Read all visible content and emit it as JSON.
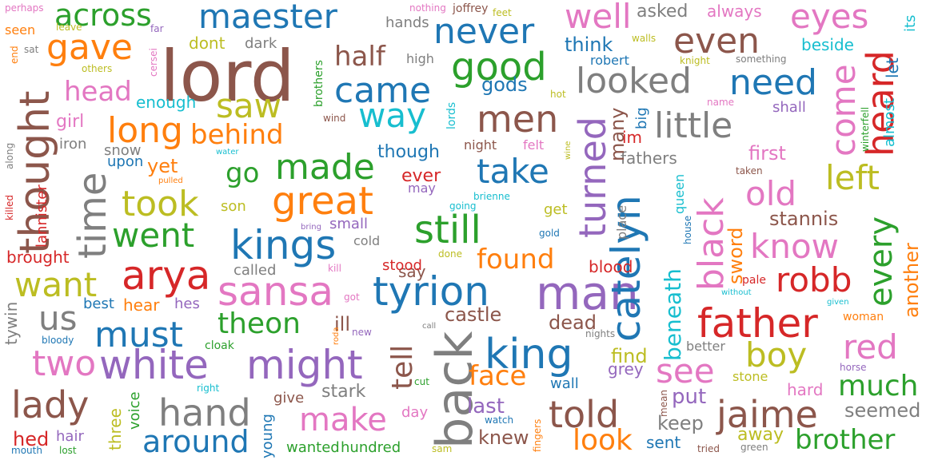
{
  "colors": {
    "background": "#ffffff",
    "palette": [
      "#1f77b4",
      "#ff7f0e",
      "#2ca02c",
      "#d62728",
      "#9467bd",
      "#8c564b",
      "#e377c2",
      "#7f7f7f",
      "#bcbd22",
      "#17becf"
    ]
  },
  "words": [
    {
      "text": "lord",
      "color": "#8c564b",
      "rotated": false
    },
    {
      "text": "thought",
      "color": "#8c564b",
      "rotated": true
    },
    {
      "text": "back",
      "color": "#7f7f7f",
      "rotated": true
    },
    {
      "text": "man",
      "color": "#9467bd",
      "rotated": false
    },
    {
      "text": "king",
      "color": "#1f77b4",
      "rotated": false
    },
    {
      "text": "father",
      "color": "#d62728",
      "rotated": false
    },
    {
      "text": "tyrion",
      "color": "#1f77b4",
      "rotated": false
    },
    {
      "text": "kings",
      "color": "#1f77b4",
      "rotated": false
    },
    {
      "text": "sansa",
      "color": "#e377c2",
      "rotated": false
    },
    {
      "text": "arya",
      "color": "#d62728",
      "rotated": false
    },
    {
      "text": "might",
      "color": "#9467bd",
      "rotated": false
    },
    {
      "text": "white",
      "color": "#9467bd",
      "rotated": false
    },
    {
      "text": "great",
      "color": "#ff7f0e",
      "rotated": false
    },
    {
      "text": "still",
      "color": "#2ca02c",
      "rotated": false
    },
    {
      "text": "men",
      "color": "#8c564b",
      "rotated": false
    },
    {
      "text": "catelyn",
      "color": "#1f77b4",
      "rotated": true
    },
    {
      "text": "turned",
      "color": "#9467bd",
      "rotated": true
    },
    {
      "text": "black",
      "color": "#e377c2",
      "rotated": true
    },
    {
      "text": "jaime",
      "color": "#8c564b",
      "rotated": false
    },
    {
      "text": "told",
      "color": "#8c564b",
      "rotated": false
    },
    {
      "text": "hand",
      "color": "#7f7f7f",
      "rotated": false
    },
    {
      "text": "lady",
      "color": "#8c564b",
      "rotated": false
    },
    {
      "text": "two",
      "color": "#e377c2",
      "rotated": false
    },
    {
      "text": "must",
      "color": "#1f77b4",
      "rotated": false
    },
    {
      "text": "us",
      "color": "#7f7f7f",
      "rotated": false
    },
    {
      "text": "around",
      "color": "#1f77b4",
      "rotated": false
    },
    {
      "text": "make",
      "color": "#e377c2",
      "rotated": false
    },
    {
      "text": "maester",
      "color": "#1f77b4",
      "rotated": false
    },
    {
      "text": "never",
      "color": "#1f77b4",
      "rotated": false
    },
    {
      "text": "good",
      "color": "#2ca02c",
      "rotated": false
    },
    {
      "text": "even",
      "color": "#8c564b",
      "rotated": false
    },
    {
      "text": "eyes",
      "color": "#e377c2",
      "rotated": false
    },
    {
      "text": "well",
      "color": "#e377c2",
      "rotated": false
    },
    {
      "text": "came",
      "color": "#1f77b4",
      "rotated": false
    },
    {
      "text": "looked",
      "color": "#7f7f7f",
      "rotated": false
    },
    {
      "text": "need",
      "color": "#1f77b4",
      "rotated": false
    },
    {
      "text": "little",
      "color": "#7f7f7f",
      "rotated": false
    },
    {
      "text": "heard",
      "color": "#d62728",
      "rotated": true
    },
    {
      "text": "come",
      "color": "#e377c2",
      "rotated": true
    },
    {
      "text": "left",
      "color": "#bcbd22",
      "rotated": false
    },
    {
      "text": "old",
      "color": "#e377c2",
      "rotated": false
    },
    {
      "text": "know",
      "color": "#e377c2",
      "rotated": false
    },
    {
      "text": "robb",
      "color": "#d62728",
      "rotated": false
    },
    {
      "text": "every",
      "color": "#2ca02c",
      "rotated": true
    },
    {
      "text": "red",
      "color": "#e377c2",
      "rotated": false
    },
    {
      "text": "boy",
      "color": "#bcbd22",
      "rotated": false
    },
    {
      "text": "see",
      "color": "#e377c2",
      "rotated": false
    },
    {
      "text": "much",
      "color": "#2ca02c",
      "rotated": false
    },
    {
      "text": "brother",
      "color": "#2ca02c",
      "rotated": false
    },
    {
      "text": "seemed",
      "color": "#7f7f7f",
      "rotated": false
    },
    {
      "text": "time",
      "color": "#7f7f7f",
      "rotated": true
    },
    {
      "text": "took",
      "color": "#bcbd22",
      "rotated": false
    },
    {
      "text": "went",
      "color": "#2ca02c",
      "rotated": false
    },
    {
      "text": "want",
      "color": "#bcbd22",
      "rotated": false
    },
    {
      "text": "long",
      "color": "#ff7f0e",
      "rotated": false
    },
    {
      "text": "saw",
      "color": "#bcbd22",
      "rotated": false
    },
    {
      "text": "way",
      "color": "#17becf",
      "rotated": false
    },
    {
      "text": "made",
      "color": "#2ca02c",
      "rotated": false
    },
    {
      "text": "take",
      "color": "#1f77b4",
      "rotated": false
    },
    {
      "text": "gave",
      "color": "#ff7f0e",
      "rotated": false
    },
    {
      "text": "across",
      "color": "#2ca02c",
      "rotated": false
    },
    {
      "text": "head",
      "color": "#e377c2",
      "rotated": false
    },
    {
      "text": "behind",
      "color": "#ff7f0e",
      "rotated": false
    },
    {
      "text": "go",
      "color": "#2ca02c",
      "rotated": false
    },
    {
      "text": "half",
      "color": "#8c564b",
      "rotated": false
    },
    {
      "text": "theon",
      "color": "#2ca02c",
      "rotated": false
    },
    {
      "text": "found",
      "color": "#ff7f0e",
      "rotated": false
    },
    {
      "text": "face",
      "color": "#ff7f0e",
      "rotated": false
    },
    {
      "text": "tell",
      "color": "#8c564b",
      "rotated": true
    },
    {
      "text": "look",
      "color": "#ff7f0e",
      "rotated": false
    },
    {
      "text": "beneath",
      "color": "#17becf",
      "rotated": true
    },
    {
      "text": "sword",
      "color": "#ff7f0e",
      "rotated": true
    },
    {
      "text": "another",
      "color": "#ff7f0e",
      "rotated": true
    },
    {
      "text": "stannis",
      "color": "#8c564b",
      "rotated": false
    },
    {
      "text": "first",
      "color": "#e377c2",
      "rotated": false
    },
    {
      "text": "dead",
      "color": "#8c564b",
      "rotated": false
    },
    {
      "text": "castle",
      "color": "#8c564b",
      "rotated": false
    },
    {
      "text": "knew",
      "color": "#8c564b",
      "rotated": false
    },
    {
      "text": "last",
      "color": "#9467bd",
      "rotated": false
    },
    {
      "text": "keep",
      "color": "#7f7f7f",
      "rotated": false
    },
    {
      "text": "put",
      "color": "#9467bd",
      "rotated": false
    },
    {
      "text": "away",
      "color": "#bcbd22",
      "rotated": false
    },
    {
      "text": "sent",
      "color": "#1f77b4",
      "rotated": false
    },
    {
      "text": "find",
      "color": "#bcbd22",
      "rotated": false
    },
    {
      "text": "grey",
      "color": "#9467bd",
      "rotated": false
    },
    {
      "text": "think",
      "color": "#1f77b4",
      "rotated": false
    },
    {
      "text": "gods",
      "color": "#1f77b4",
      "rotated": false
    },
    {
      "text": "enough",
      "color": "#17becf",
      "rotated": false
    },
    {
      "text": "yet",
      "color": "#ff7f0e",
      "rotated": false
    },
    {
      "text": "son",
      "color": "#bcbd22",
      "rotated": false
    },
    {
      "text": "girl",
      "color": "#e377c2",
      "rotated": false
    },
    {
      "text": "iron",
      "color": "#7f7f7f",
      "rotated": false
    },
    {
      "text": "snow",
      "color": "#7f7f7f",
      "rotated": false
    },
    {
      "text": "upon",
      "color": "#1f77b4",
      "rotated": false
    },
    {
      "text": "lannister",
      "color": "#d62728",
      "rotated": true
    },
    {
      "text": "brought",
      "color": "#d62728",
      "rotated": false
    },
    {
      "text": "tywin",
      "color": "#7f7f7f",
      "rotated": true
    },
    {
      "text": "best",
      "color": "#1f77b4",
      "rotated": false
    },
    {
      "text": "hear",
      "color": "#ff7f0e",
      "rotated": false
    },
    {
      "text": "hes",
      "color": "#9467bd",
      "rotated": false
    },
    {
      "text": "ill",
      "color": "#8c564b",
      "rotated": false
    },
    {
      "text": "three",
      "color": "#bcbd22",
      "rotated": true
    },
    {
      "text": "voice",
      "color": "#2ca02c",
      "rotated": true
    },
    {
      "text": "hair",
      "color": "#9467bd",
      "rotated": false
    },
    {
      "text": "hed",
      "color": "#d62728",
      "rotated": false
    },
    {
      "text": "give",
      "color": "#8c564b",
      "rotated": false
    },
    {
      "text": "stark",
      "color": "#7f7f7f",
      "rotated": false
    },
    {
      "text": "young",
      "color": "#1f77b4",
      "rotated": true
    },
    {
      "text": "wanted",
      "color": "#2ca02c",
      "rotated": false
    },
    {
      "text": "hundred",
      "color": "#2ca02c",
      "rotated": false
    },
    {
      "text": "day",
      "color": "#e377c2",
      "rotated": false
    },
    {
      "text": "wall",
      "color": "#1f77b4",
      "rotated": false
    },
    {
      "text": "cloak",
      "color": "#2ca02c",
      "rotated": false
    },
    {
      "text": "called",
      "color": "#7f7f7f",
      "rotated": false
    },
    {
      "text": "say",
      "color": "#8c564b",
      "rotated": false
    },
    {
      "text": "stood",
      "color": "#d62728",
      "rotated": false
    },
    {
      "text": "blood",
      "color": "#d62728",
      "rotated": false
    },
    {
      "text": "cold",
      "color": "#7f7f7f",
      "rotated": false
    },
    {
      "text": "small",
      "color": "#9467bd",
      "rotated": false
    },
    {
      "text": "get",
      "color": "#bcbd22",
      "rotated": false
    },
    {
      "text": "ever",
      "color": "#d62728",
      "rotated": false
    },
    {
      "text": "may",
      "color": "#9467bd",
      "rotated": false
    },
    {
      "text": "though",
      "color": "#1f77b4",
      "rotated": false
    },
    {
      "text": "night",
      "color": "#8c564b",
      "rotated": false
    },
    {
      "text": "felt",
      "color": "#e377c2",
      "rotated": false
    },
    {
      "text": "fathers",
      "color": "#7f7f7f",
      "rotated": false
    },
    {
      "text": "many",
      "color": "#8c564b",
      "rotated": true
    },
    {
      "text": "im",
      "color": "#d62728",
      "rotated": false
    },
    {
      "text": "big",
      "color": "#1f77b4",
      "rotated": true
    },
    {
      "text": "queen",
      "color": "#17becf",
      "rotated": true
    },
    {
      "text": "place",
      "color": "#7f7f7f",
      "rotated": true
    },
    {
      "text": "house",
      "color": "#1f77b4",
      "rotated": true
    },
    {
      "text": "better",
      "color": "#7f7f7f",
      "rotated": false
    },
    {
      "text": "stone",
      "color": "#bcbd22",
      "rotated": false
    },
    {
      "text": "hard",
      "color": "#e377c2",
      "rotated": false
    },
    {
      "text": "woman",
      "color": "#ff7f0e",
      "rotated": false
    },
    {
      "text": "pale",
      "color": "#d62728",
      "rotated": false
    },
    {
      "text": "almost",
      "color": "#17becf",
      "rotated": true
    },
    {
      "text": "let",
      "color": "#1f77b4",
      "rotated": true
    },
    {
      "text": "its",
      "color": "#17becf",
      "rotated": true
    },
    {
      "text": "beside",
      "color": "#17becf",
      "rotated": false
    },
    {
      "text": "shall",
      "color": "#9467bd",
      "rotated": false
    },
    {
      "text": "asked",
      "color": "#7f7f7f",
      "rotated": false
    },
    {
      "text": "always",
      "color": "#e377c2",
      "rotated": false
    },
    {
      "text": "robert",
      "color": "#1f77b4",
      "rotated": false
    },
    {
      "text": "dont",
      "color": "#bcbd22",
      "rotated": false
    },
    {
      "text": "dark",
      "color": "#7f7f7f",
      "rotated": false
    },
    {
      "text": "hands",
      "color": "#7f7f7f",
      "rotated": false
    },
    {
      "text": "high",
      "color": "#7f7f7f",
      "rotated": false
    },
    {
      "text": "brothers",
      "color": "#2ca02c",
      "rotated": true
    },
    {
      "text": "lords",
      "color": "#17becf",
      "rotated": true
    },
    {
      "text": "seen",
      "color": "#ff7f0e",
      "rotated": false
    },
    {
      "text": "sat",
      "color": "#7f7f7f",
      "rotated": false
    },
    {
      "text": "end",
      "color": "#ff7f0e",
      "rotated": true
    },
    {
      "text": "others",
      "color": "#bcbd22",
      "rotated": false
    },
    {
      "text": "leave",
      "color": "#bcbd22",
      "rotated": false
    },
    {
      "text": "far",
      "color": "#9467bd",
      "rotated": false
    },
    {
      "text": "cersei",
      "color": "#e377c2",
      "rotated": true
    },
    {
      "text": "perhaps",
      "color": "#e377c2",
      "rotated": false
    },
    {
      "text": "nothing",
      "color": "#e377c2",
      "rotated": false
    },
    {
      "text": "joffrey",
      "color": "#8c564b",
      "rotated": false
    },
    {
      "text": "feet",
      "color": "#bcbd22",
      "rotated": false
    },
    {
      "text": "walls",
      "color": "#bcbd22",
      "rotated": false
    },
    {
      "text": "knight",
      "color": "#bcbd22",
      "rotated": false
    },
    {
      "text": "something",
      "color": "#7f7f7f",
      "rotated": false
    },
    {
      "text": "hot",
      "color": "#bcbd22",
      "rotated": false
    },
    {
      "text": "name",
      "color": "#e377c2",
      "rotated": false
    },
    {
      "text": "wind",
      "color": "#8c564b",
      "rotated": false
    },
    {
      "text": "water",
      "color": "#17becf",
      "rotated": false
    },
    {
      "text": "pulled",
      "color": "#ff7f0e",
      "rotated": false
    },
    {
      "text": "killed",
      "color": "#d62728",
      "rotated": true
    },
    {
      "text": "along",
      "color": "#7f7f7f",
      "rotated": true
    },
    {
      "text": "winterfell",
      "color": "#2ca02c",
      "rotated": true
    },
    {
      "text": "taken",
      "color": "#8c564b",
      "rotated": false
    },
    {
      "text": "wine",
      "color": "#bcbd22",
      "rotated": true
    },
    {
      "text": "going",
      "color": "#17becf",
      "rotated": false
    },
    {
      "text": "brienne",
      "color": "#17becf",
      "rotated": false
    },
    {
      "text": "bring",
      "color": "#9467bd",
      "rotated": false
    },
    {
      "text": "gold",
      "color": "#1f77b4",
      "rotated": false
    },
    {
      "text": "done",
      "color": "#bcbd22",
      "rotated": false
    },
    {
      "text": "kill",
      "color": "#e377c2",
      "rotated": false
    },
    {
      "text": "got",
      "color": "#e377c2",
      "rotated": false
    },
    {
      "text": "new",
      "color": "#9467bd",
      "rotated": false
    },
    {
      "text": "call",
      "color": "#7f7f7f",
      "rotated": false
    },
    {
      "text": "roda",
      "color": "#ff7f0e",
      "rotated": true
    },
    {
      "text": "nights",
      "color": "#7f7f7f",
      "rotated": false
    },
    {
      "text": "without",
      "color": "#17becf",
      "rotated": false
    },
    {
      "text": "given",
      "color": "#17becf",
      "rotated": false
    },
    {
      "text": "horse",
      "color": "#9467bd",
      "rotated": false
    },
    {
      "text": "right",
      "color": "#17becf",
      "rotated": false
    },
    {
      "text": "bloody",
      "color": "#1f77b4",
      "rotated": false
    },
    {
      "text": "mouth",
      "color": "#1f77b4",
      "rotated": false
    },
    {
      "text": "lost",
      "color": "#2ca02c",
      "rotated": false
    },
    {
      "text": "cut",
      "color": "#2ca02c",
      "rotated": false
    },
    {
      "text": "sam",
      "color": "#bcbd22",
      "rotated": false
    },
    {
      "text": "watch",
      "color": "#1f77b4",
      "rotated": false
    },
    {
      "text": "fingers",
      "color": "#ff7f0e",
      "rotated": true
    },
    {
      "text": "mean",
      "color": "#8c564b",
      "rotated": true
    },
    {
      "text": "tried",
      "color": "#8c564b",
      "rotated": false
    },
    {
      "text": "green",
      "color": "#7f7f7f",
      "rotated": false
    }
  ]
}
